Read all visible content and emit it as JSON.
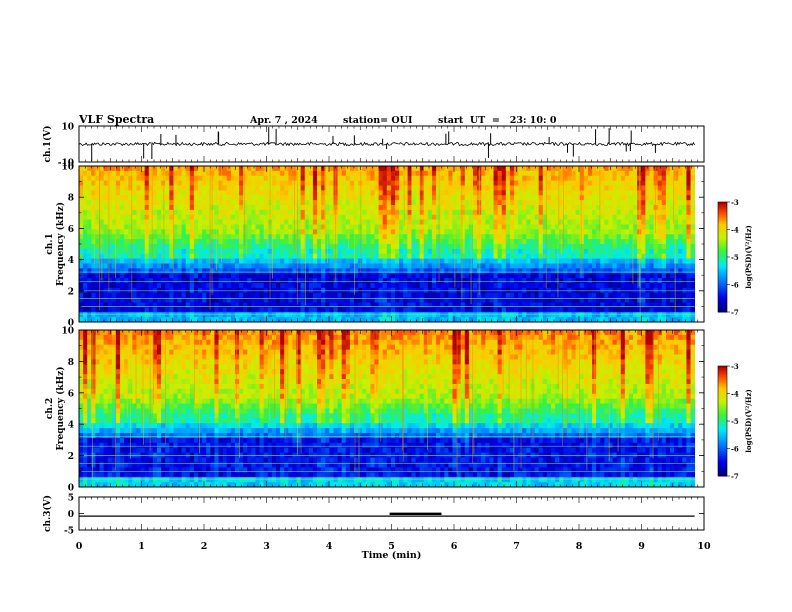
{
  "header": {
    "title": "VLF Spectra",
    "date": "Apr. 7 , 2024",
    "station": "station= OUI",
    "start": "start  UT  =   23: 10: 0"
  },
  "chart_data": [
    {
      "type": "line",
      "panel": "ch1-waveform",
      "ylabel": "ch.1(V)",
      "xlim": [
        0,
        10
      ],
      "ylim": [
        -10,
        10
      ],
      "yticks": [
        "10",
        "-10"
      ],
      "baseline": 0,
      "color": "#000000"
    },
    {
      "type": "heatmap",
      "panel": "ch1-spectrogram",
      "ylabel": "ch.1\nFrequency (kHz)",
      "xlim": [
        0,
        9.85
      ],
      "ylim": [
        0,
        10
      ],
      "yticks": [
        "0",
        "2",
        "4",
        "6",
        "8",
        "10"
      ],
      "colorbar": {
        "label": "log(PSD)(V²/Hz)",
        "range": [
          -7,
          -3
        ],
        "ticks": [
          "-3",
          "-4",
          "-5",
          "-6",
          "-7"
        ]
      }
    },
    {
      "type": "heatmap",
      "panel": "ch2-spectrogram",
      "ylabel": "ch.2\nFrequency (kHz)",
      "xlim": [
        0,
        9.85
      ],
      "ylim": [
        0,
        10
      ],
      "yticks": [
        "0",
        "2",
        "4",
        "6",
        "8",
        "10"
      ],
      "colorbar": {
        "label": "log(PSD)(V²/Hz)",
        "range": [
          -7,
          -3
        ],
        "ticks": [
          "-3",
          "-4",
          "-5",
          "-6",
          "-7"
        ]
      }
    },
    {
      "type": "line",
      "panel": "ch3-waveform",
      "ylabel": "ch.3(V)",
      "xlim": [
        0,
        10
      ],
      "ylim": [
        -5,
        5
      ],
      "yticks": [
        "5",
        "0",
        "-5"
      ],
      "baseline": -0.8,
      "segments": [
        {
          "x": [
            4.97,
            5.8
          ],
          "y": -0.1
        }
      ],
      "color": "#000000"
    }
  ],
  "xaxis": {
    "label": "Time (min)",
    "ticks": [
      "0",
      "1",
      "2",
      "3",
      "4",
      "5",
      "6",
      "7",
      "8",
      "9",
      "10"
    ]
  }
}
